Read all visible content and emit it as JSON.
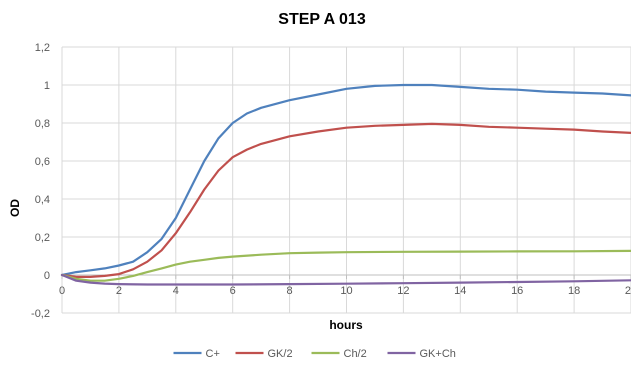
{
  "chart_data": {
    "type": "line",
    "title": "STEP A 013",
    "xlabel": "hours",
    "ylabel": "OD",
    "xlim": [
      0,
      20
    ],
    "ylim": [
      -0.2,
      1.2
    ],
    "x_ticks": [
      0,
      2,
      4,
      6,
      8,
      10,
      12,
      14,
      16,
      18,
      20
    ],
    "x_tick_labels": [
      "0",
      "2",
      "4",
      "6",
      "8",
      "10",
      "12",
      "14",
      "16",
      "18",
      "20"
    ],
    "y_ticks": [
      -0.2,
      0,
      0.2,
      0.4,
      0.6,
      0.8,
      1,
      1.2
    ],
    "y_tick_labels": [
      "-0,2",
      "0",
      "0,2",
      "0,4",
      "0,6",
      "0,8",
      "1",
      "1,2"
    ],
    "grid": true,
    "legend_position": "bottom",
    "series": [
      {
        "name": "C+",
        "color": "#4f81bd",
        "points": [
          [
            0,
            0
          ],
          [
            0.5,
            0.015
          ],
          [
            1,
            0.025
          ],
          [
            1.5,
            0.035
          ],
          [
            2,
            0.05
          ],
          [
            2.5,
            0.07
          ],
          [
            3,
            0.12
          ],
          [
            3.5,
            0.19
          ],
          [
            4,
            0.3
          ],
          [
            4.5,
            0.45
          ],
          [
            5,
            0.6
          ],
          [
            5.5,
            0.72
          ],
          [
            6,
            0.8
          ],
          [
            6.5,
            0.85
          ],
          [
            7,
            0.88
          ],
          [
            8,
            0.92
          ],
          [
            9,
            0.95
          ],
          [
            10,
            0.98
          ],
          [
            11,
            0.995
          ],
          [
            12,
            1.0
          ],
          [
            13,
            1.0
          ],
          [
            14,
            0.99
          ],
          [
            15,
            0.98
          ],
          [
            16,
            0.975
          ],
          [
            17,
            0.965
          ],
          [
            18,
            0.96
          ],
          [
            19,
            0.955
          ],
          [
            20,
            0.945
          ]
        ]
      },
      {
        "name": "GK/2",
        "color": "#c0504d",
        "points": [
          [
            0,
            0
          ],
          [
            0.5,
            -0.01
          ],
          [
            1,
            -0.01
          ],
          [
            1.5,
            -0.005
          ],
          [
            2,
            0.005
          ],
          [
            2.5,
            0.03
          ],
          [
            3,
            0.07
          ],
          [
            3.5,
            0.13
          ],
          [
            4,
            0.22
          ],
          [
            4.5,
            0.33
          ],
          [
            5,
            0.45
          ],
          [
            5.5,
            0.55
          ],
          [
            6,
            0.62
          ],
          [
            6.5,
            0.66
          ],
          [
            7,
            0.69
          ],
          [
            8,
            0.73
          ],
          [
            9,
            0.755
          ],
          [
            10,
            0.775
          ],
          [
            11,
            0.785
          ],
          [
            12,
            0.79
          ],
          [
            13,
            0.795
          ],
          [
            14,
            0.79
          ],
          [
            15,
            0.78
          ],
          [
            16,
            0.775
          ],
          [
            17,
            0.77
          ],
          [
            18,
            0.765
          ],
          [
            19,
            0.755
          ],
          [
            20,
            0.748
          ]
        ]
      },
      {
        "name": "Ch/2",
        "color": "#9bbb59",
        "points": [
          [
            0,
            0
          ],
          [
            0.5,
            -0.02
          ],
          [
            1,
            -0.03
          ],
          [
            1.5,
            -0.03
          ],
          [
            2,
            -0.02
          ],
          [
            2.5,
            -0.005
          ],
          [
            3,
            0.015
          ],
          [
            3.5,
            0.035
          ],
          [
            4,
            0.055
          ],
          [
            4.5,
            0.07
          ],
          [
            5,
            0.08
          ],
          [
            5.5,
            0.09
          ],
          [
            6,
            0.097
          ],
          [
            7,
            0.107
          ],
          [
            8,
            0.115
          ],
          [
            9,
            0.118
          ],
          [
            10,
            0.12
          ],
          [
            12,
            0.122
          ],
          [
            14,
            0.123
          ],
          [
            16,
            0.124
          ],
          [
            18,
            0.125
          ],
          [
            20,
            0.127
          ]
        ]
      },
      {
        "name": "GK+Ch",
        "color": "#8064a2",
        "points": [
          [
            0,
            0
          ],
          [
            0.5,
            -0.03
          ],
          [
            1,
            -0.04
          ],
          [
            1.5,
            -0.045
          ],
          [
            2,
            -0.048
          ],
          [
            3,
            -0.05
          ],
          [
            4,
            -0.05
          ],
          [
            6,
            -0.05
          ],
          [
            8,
            -0.048
          ],
          [
            10,
            -0.046
          ],
          [
            12,
            -0.043
          ],
          [
            14,
            -0.04
          ],
          [
            16,
            -0.037
          ],
          [
            18,
            -0.033
          ],
          [
            20,
            -0.028
          ]
        ]
      }
    ]
  }
}
